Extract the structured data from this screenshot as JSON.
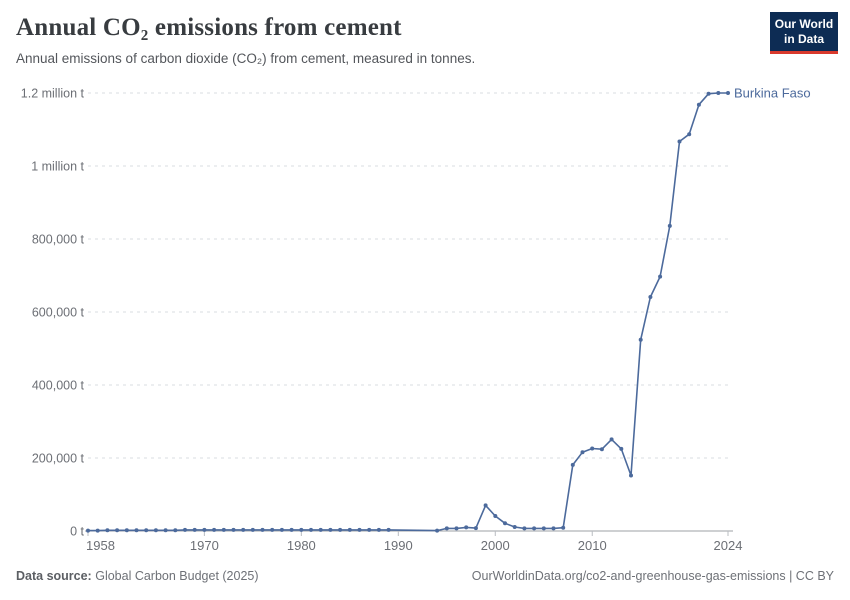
{
  "header": {
    "title": "Annual CO₂ emissions from cement",
    "subtitle": "Annual emissions of carbon dioxide (CO₂) from cement, measured in tonnes."
  },
  "logo": {
    "line1": "Our World",
    "line2": "in Data",
    "bg_color": "#0d2c54",
    "accent_color": "#d93a2d"
  },
  "footer": {
    "source_label": "Data source:",
    "source_value": "Global Carbon Budget (2025)",
    "right": "OurWorldinData.org/co2-and-greenhouse-gas-emissions | CC BY"
  },
  "chart_data": {
    "type": "line",
    "title": "Annual CO₂ emissions from cement",
    "xlabel": "",
    "ylabel": "",
    "unit": "t",
    "xlim": [
      1958,
      2024
    ],
    "ylim": [
      0,
      1200000
    ],
    "grid": "dashed-horizontal",
    "legend_position": "end-of-line-label",
    "line_color": "#4C6A9C",
    "x_ticks": [
      {
        "value": 1958,
        "label": "1958",
        "anchor": "start"
      },
      {
        "value": 1970,
        "label": "1970",
        "anchor": "middle"
      },
      {
        "value": 1980,
        "label": "1980",
        "anchor": "middle"
      },
      {
        "value": 1990,
        "label": "1990",
        "anchor": "middle"
      },
      {
        "value": 2000,
        "label": "2000",
        "anchor": "middle"
      },
      {
        "value": 2010,
        "label": "2010",
        "anchor": "middle"
      },
      {
        "value": 2024,
        "label": "2024",
        "anchor": "middle"
      }
    ],
    "y_ticks": [
      {
        "value": 0,
        "label": "0 t"
      },
      {
        "value": 200000,
        "label": "200,000 t"
      },
      {
        "value": 400000,
        "label": "400,000 t"
      },
      {
        "value": 600000,
        "label": "600,000 t"
      },
      {
        "value": 800000,
        "label": "800,000 t"
      },
      {
        "value": 1000000,
        "label": "1 million t"
      },
      {
        "value": 1200000,
        "label": "1.2 million t"
      }
    ],
    "series": [
      {
        "name": "Burkina Faso",
        "color": "#4C6A9C",
        "x": [
          1958,
          1959,
          1960,
          1961,
          1962,
          1963,
          1964,
          1965,
          1966,
          1967,
          1968,
          1969,
          1970,
          1971,
          1972,
          1973,
          1974,
          1975,
          1976,
          1977,
          1978,
          1979,
          1980,
          1981,
          1982,
          1983,
          1984,
          1985,
          1986,
          1987,
          1988,
          1989,
          1990,
          1991,
          1992,
          1993,
          1994,
          1995,
          1996,
          1997,
          1998,
          1999,
          2000,
          2001,
          2002,
          2003,
          2004,
          2005,
          2006,
          2007,
          2008,
          2009,
          2010,
          2011,
          2012,
          2013,
          2014,
          2015,
          2016,
          2017,
          2018,
          2019,
          2020,
          2021,
          2022,
          2023,
          2024
        ],
        "values": [
          1000,
          1000,
          2000,
          2000,
          2000,
          2000,
          2000,
          2000,
          2000,
          2000,
          3000,
          3000,
          3000,
          3000,
          3000,
          3000,
          3000,
          3000,
          3000,
          3000,
          3000,
          3000,
          3000,
          3000,
          3000,
          3000,
          3000,
          3000,
          3000,
          3000,
          3000,
          3000,
          null,
          null,
          null,
          null,
          1000,
          7000,
          7000,
          10000,
          8000,
          70000,
          41000,
          21000,
          11000,
          7000,
          7000,
          7000,
          7000,
          9000,
          181000,
          216000,
          226000,
          224000,
          251000,
          225000,
          152000,
          524000,
          641000,
          697000,
          836000,
          1067000,
          1087000,
          1168000,
          1198000,
          1200000,
          1200000
        ]
      }
    ]
  }
}
